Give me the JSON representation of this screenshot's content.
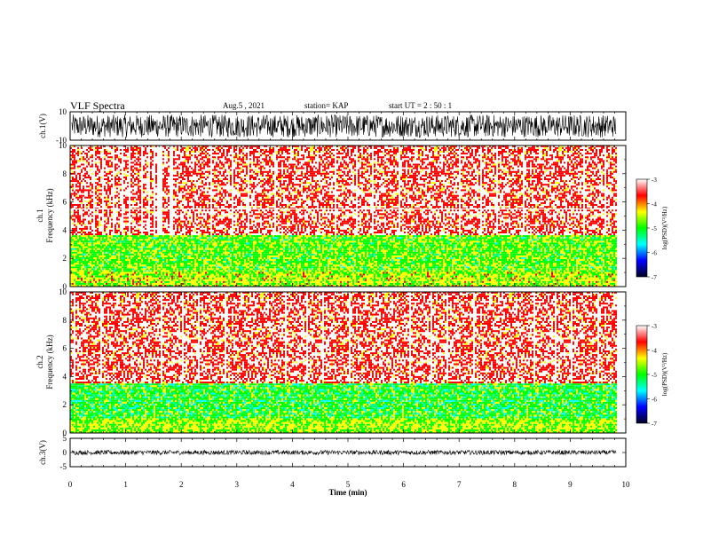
{
  "header": {
    "title": "VLF Spectra",
    "date": "Aug.5  , 2021",
    "station": "station= KAP",
    "start": "start  UT  =   2  : 50 : 1"
  },
  "chart_data": [
    {
      "type": "line",
      "title": "",
      "ylabel": "ch.1(V)",
      "ylim": [
        -10,
        10
      ],
      "yticks": [
        "10",
        "-10"
      ],
      "xlim": [
        0,
        10
      ],
      "end_min": 9.83,
      "description": "dense black waveform filling most of the panel",
      "amplitude": [
        -8,
        8
      ]
    },
    {
      "type": "heatmap",
      "ylabel": "Frequency  (kHz)",
      "channel_label": "ch.1",
      "ylim": [
        0,
        10
      ],
      "yticks": [
        "0",
        "2",
        "4",
        "6",
        "8",
        "10"
      ],
      "xlim": [
        0,
        10
      ],
      "end_min": 9.83,
      "colorbar": {
        "label": "log(PSD)(V²/Hz)",
        "range": [
          -7,
          -3
        ],
        "ticks": [
          "-3",
          "-4",
          "-5",
          "-6",
          "-7"
        ],
        "colors": [
          "#ffffff",
          "#ff0000",
          "#ffff00",
          "#00ff00",
          "#00ffff",
          "#0000ff",
          "#000020"
        ]
      },
      "bands": [
        {
          "from_khz": 0,
          "to_khz": 1,
          "level": -4.5
        },
        {
          "from_khz": 1,
          "to_khz": 3.6,
          "level": -4.8
        },
        {
          "from_khz": 3.6,
          "to_khz": 10,
          "level": -3.6
        }
      ]
    },
    {
      "type": "heatmap",
      "ylabel": "Frequency  (kHz)",
      "channel_label": "ch.2",
      "ylim": [
        0,
        10
      ],
      "yticks": [
        "0",
        "2",
        "4",
        "6",
        "8",
        "10"
      ],
      "xlim": [
        0,
        10
      ],
      "end_min": 9.83,
      "colorbar": {
        "label": "log(PSD)(V²/Hz)",
        "range": [
          -7,
          -3
        ],
        "ticks": [
          "-3",
          "-4",
          "-5",
          "-6",
          "-7"
        ],
        "colors": [
          "#ffffff",
          "#ff0000",
          "#ffff00",
          "#00ff00",
          "#00ffff",
          "#0000ff",
          "#000020"
        ]
      },
      "bands": [
        {
          "from_khz": 0,
          "to_khz": 1,
          "level": -4.6
        },
        {
          "from_khz": 1,
          "to_khz": 3.4,
          "level": -5.0
        },
        {
          "from_khz": 3.4,
          "to_khz": 10,
          "level": -3.6
        }
      ]
    },
    {
      "type": "line",
      "ylabel": "ch.3(V)",
      "ylim": [
        -5,
        5
      ],
      "yticks": [
        "5",
        "0",
        "-5"
      ],
      "xlim": [
        0,
        10
      ],
      "end_min": 9.83,
      "description": "thin band of black waveform near 0 V",
      "amplitude": [
        -0.8,
        0.8
      ]
    }
  ],
  "xaxis": {
    "label": "Time  (min)",
    "ticks": [
      "0",
      "1",
      "2",
      "3",
      "4",
      "5",
      "6",
      "7",
      "8",
      "9",
      "10"
    ]
  }
}
